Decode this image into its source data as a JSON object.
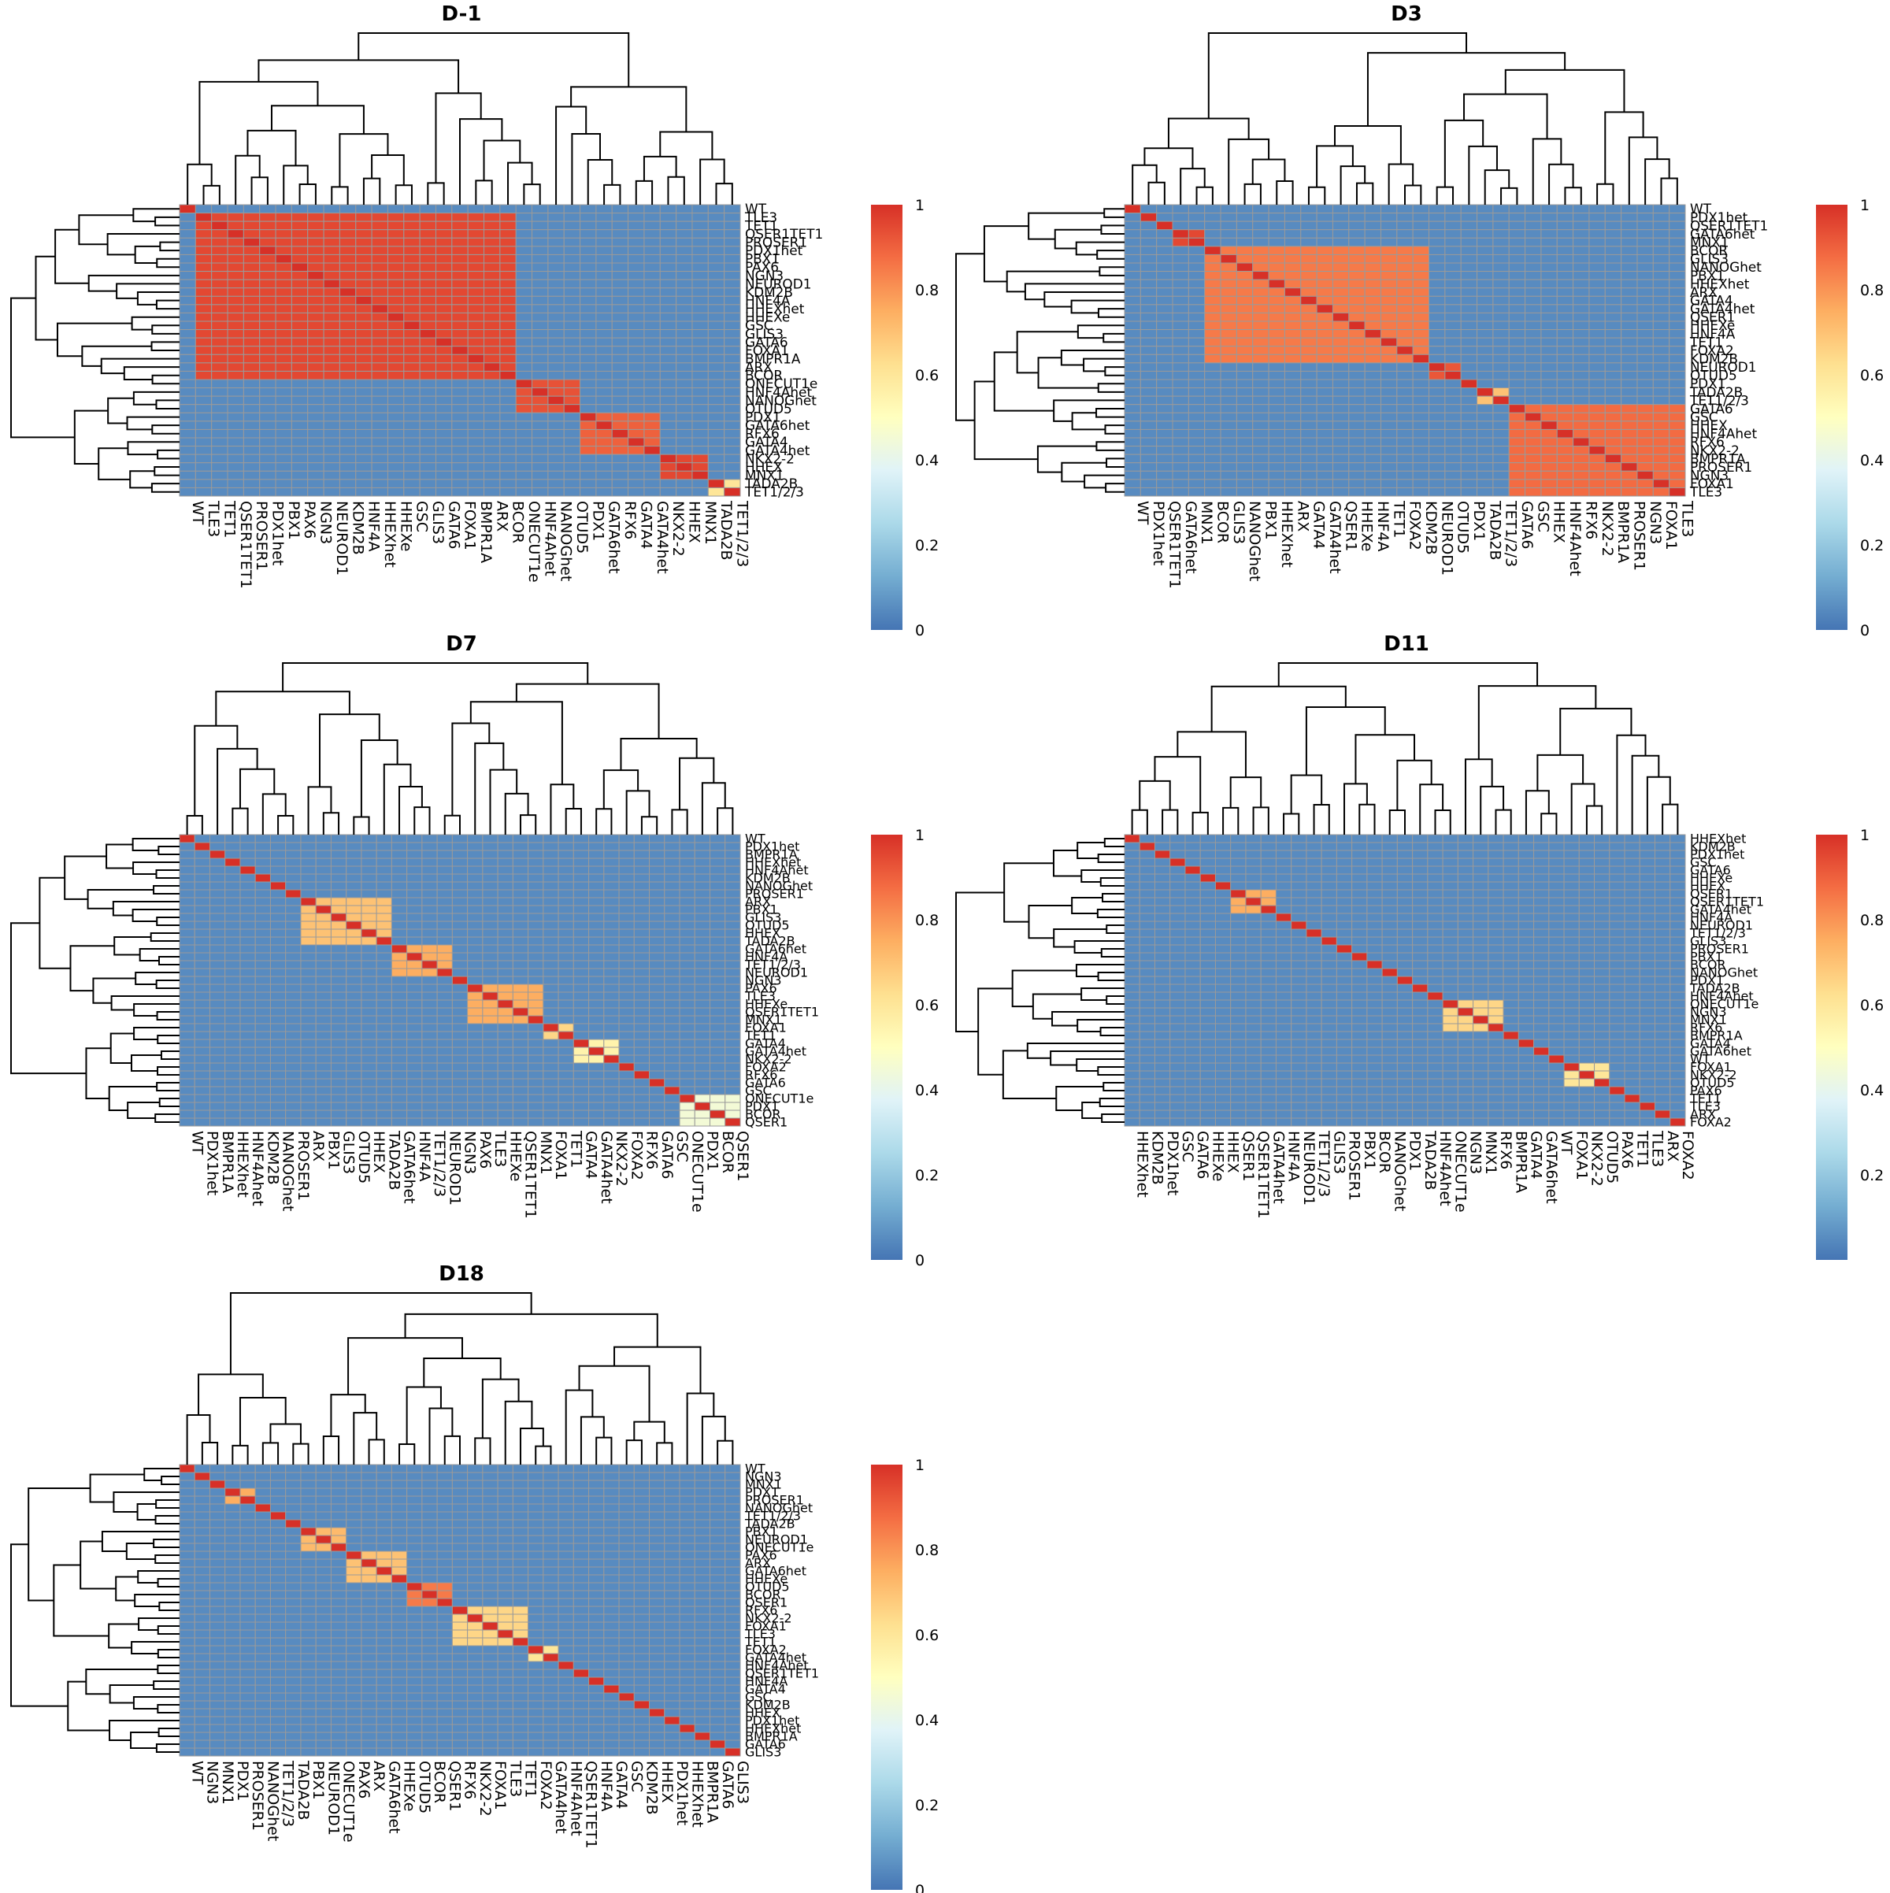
{
  "chart_data": [
    {
      "type": "heatmap",
      "title": "D-1",
      "rows": [
        "WT",
        "TLE3",
        "TET1",
        "QSER1TET1",
        "PROSER1",
        "PDX1het",
        "PBX1",
        "PAX6",
        "NGN3",
        "NEUROD1",
        "KDM2B",
        "HNF4A",
        "HHEXhet",
        "HHEXe",
        "GSC",
        "GLIS3",
        "GATA6",
        "FOXA1",
        "BMPR1A",
        "ARX",
        "BCOR",
        "ONECUT1e",
        "HNF4Ahet",
        "NANOGhet",
        "OTUD5",
        "PDX1",
        "GATA6het",
        "RFX6",
        "GATA4",
        "GATA4het",
        "NKX2-2",
        "HHEX",
        "MNX1",
        "TADA2B",
        "TET1/2/3"
      ],
      "cols": [
        "WT",
        "TLE3",
        "TET1",
        "QSER1TET1",
        "PROSER1",
        "PDX1het",
        "PBX1",
        "PAX6",
        "NGN3",
        "NEUROD1",
        "KDM2B",
        "HNF4A",
        "HHEXhet",
        "HHEXe",
        "GSC",
        "GLIS3",
        "GATA6",
        "FOXA1",
        "BMPR1A",
        "ARX",
        "BCOR",
        "ONECUT1e",
        "HNF4Ahet",
        "NANOGhet",
        "OTUD5",
        "PDX1",
        "GATA6het",
        "RFX6",
        "GATA4",
        "GATA4het",
        "NKX2-2",
        "HHEX",
        "MNX1",
        "TADA2B",
        "TET1/2/3"
      ],
      "blocks": [
        {
          "start": 1,
          "end": 20,
          "value": 0.95
        },
        {
          "start": 21,
          "end": 24,
          "value": 0.93
        },
        {
          "start": 25,
          "end": 29,
          "value": 0.9
        },
        {
          "start": 30,
          "end": 32,
          "value": 0.95
        },
        {
          "start": 33,
          "end": 34,
          "value": 0.6
        }
      ],
      "diagonal": 1.0,
      "background": 0.05,
      "legend": {
        "range": [
          0,
          1
        ],
        "ticks": [
          "1",
          "0.8",
          "0.6",
          "0.4",
          "0.2",
          "0"
        ]
      }
    },
    {
      "type": "heatmap",
      "title": "D3",
      "rows": [
        "WT",
        "PDX1het",
        "QSER1TET1",
        "GATA6het",
        "MNX1",
        "BCOR",
        "GLIS3",
        "NANOGhet",
        "PBX1",
        "HHEXhet",
        "ARX",
        "GATA4",
        "GATA4het",
        "QSER1",
        "HHEXe",
        "HNF4A",
        "TET1",
        "FOXA2",
        "KDM2B",
        "NEUROD1",
        "OTUD5",
        "PDX1",
        "TADA2B",
        "TET1/2/3",
        "GATA6",
        "GSC",
        "HHEX",
        "HNF4Ahet",
        "RFX6",
        "NKX2-2",
        "BMPR1A",
        "PROSER1",
        "NGN3",
        "FOXA1",
        "TLE3"
      ],
      "cols": [
        "WT",
        "PDX1het",
        "QSER1TET1",
        "GATA6het",
        "MNX1",
        "BCOR",
        "GLIS3",
        "NANOGhet",
        "PBX1",
        "HHEXhet",
        "ARX",
        "GATA4",
        "GATA4het",
        "QSER1",
        "HHEXe",
        "HNF4A",
        "TET1",
        "FOXA2",
        "KDM2B",
        "NEUROD1",
        "OTUD5",
        "PDX1",
        "TADA2B",
        "TET1/2/3",
        "GATA6",
        "GSC",
        "HHEX",
        "HNF4Ahet",
        "RFX6",
        "NKX2-2",
        "BMPR1A",
        "PROSER1",
        "NGN3",
        "FOXA1",
        "TLE3"
      ],
      "blocks": [
        {
          "start": 3,
          "end": 4,
          "value": 0.95
        },
        {
          "start": 5,
          "end": 18,
          "value": 0.85
        },
        {
          "start": 19,
          "end": 20,
          "value": 0.92
        },
        {
          "start": 22,
          "end": 23,
          "value": 0.7
        },
        {
          "start": 24,
          "end": 34,
          "value": 0.88
        }
      ],
      "diagonal": 1.0,
      "background": 0.05,
      "legend": {
        "range": [
          0,
          1
        ],
        "ticks": [
          "1",
          "0.8",
          "0.6",
          "0.4",
          "0.2",
          "0"
        ]
      }
    },
    {
      "type": "heatmap",
      "title": "D7",
      "rows": [
        "WT",
        "PDX1het",
        "BMPR1A",
        "HHEXhet",
        "HNF4Ahet",
        "KDM2B",
        "NANOGhet",
        "PROSER1",
        "ARX",
        "PBX1",
        "GLIS3",
        "OTUD5",
        "HHEX",
        "TADA2B",
        "GATA6het",
        "HNF4A",
        "TET1/2/3",
        "NEUROD1",
        "NGN3",
        "PAX6",
        "TLE3",
        "HHEXe",
        "QSER1TET1",
        "MNX1",
        "FOXA1",
        "TET1",
        "GATA4",
        "GATA4het",
        "NKX2-2",
        "FOXA2",
        "RFX6",
        "GATA6",
        "GSC",
        "ONECUT1e",
        "PDX1",
        "BCOR",
        "QSER1"
      ],
      "cols": [
        "WT",
        "PDX1het",
        "BMPR1A",
        "HHEXhet",
        "HNF4Ahet",
        "KDM2B",
        "NANOGhet",
        "PROSER1",
        "ARX",
        "PBX1",
        "GLIS3",
        "OTUD5",
        "HHEX",
        "TADA2B",
        "GATA6het",
        "HNF4A",
        "TET1/2/3",
        "NEUROD1",
        "NGN3",
        "PAX6",
        "TLE3",
        "HHEXe",
        "QSER1TET1",
        "MNX1",
        "FOXA1",
        "TET1",
        "GATA4",
        "GATA4het",
        "NKX2-2",
        "FOXA2",
        "RFX6",
        "GATA6",
        "GSC",
        "ONECUT1e",
        "PDX1",
        "BCOR",
        "QSER1"
      ],
      "blocks": [
        {
          "start": 8,
          "end": 13,
          "value": 0.7
        },
        {
          "start": 14,
          "end": 17,
          "value": 0.75
        },
        {
          "start": 19,
          "end": 23,
          "value": 0.75
        },
        {
          "start": 24,
          "end": 25,
          "value": 0.65
        },
        {
          "start": 26,
          "end": 28,
          "value": 0.55
        },
        {
          "start": 33,
          "end": 36,
          "value": 0.45
        }
      ],
      "diagonal": 1.0,
      "background": 0.05,
      "legend": {
        "range": [
          0,
          1
        ],
        "ticks": [
          "1",
          "0.8",
          "0.6",
          "0.4",
          "0.2",
          "0"
        ]
      }
    },
    {
      "type": "heatmap",
      "title": "D11",
      "rows": [
        "HHEXhet",
        "KDM2B",
        "PDX1het",
        "GSC",
        "GATA6",
        "HHEXe",
        "HHEX",
        "QSER1",
        "QSER1TET1",
        "GATA4het",
        "HNF4A",
        "NEUROD1",
        "TET1/2/3",
        "GLIS3",
        "PROSER1",
        "PBX1",
        "BCOR",
        "NANOGhet",
        "PDX1",
        "TADA2B",
        "HNF4Ahet",
        "ONECUT1e",
        "NGN3",
        "MNX1",
        "RFX6",
        "BMPR1A",
        "GATA4",
        "GATA6het",
        "WT",
        "FOXA1",
        "NKX2-2",
        "OTUD5",
        "PAX6",
        "TET1",
        "TLE3",
        "ARX",
        "FOXA2"
      ],
      "cols": [
        "HHEXhet",
        "KDM2B",
        "PDX1het",
        "GSC",
        "GATA6",
        "HHEXe",
        "HHEX",
        "QSER1",
        "QSER1TET1",
        "GATA4het",
        "HNF4A",
        "NEUROD1",
        "TET1/2/3",
        "GLIS3",
        "PROSER1",
        "PBX1",
        "BCOR",
        "NANOGhet",
        "PDX1",
        "TADA2B",
        "HNF4Ahet",
        "ONECUT1e",
        "NGN3",
        "MNX1",
        "RFX6",
        "BMPR1A",
        "GATA4",
        "GATA6het",
        "WT",
        "FOXA1",
        "NKX2-2",
        "OTUD5",
        "PAX6",
        "TET1",
        "TLE3",
        "ARX",
        "FOXA2"
      ],
      "blocks": [
        {
          "start": 7,
          "end": 9,
          "value": 0.75
        },
        {
          "start": 21,
          "end": 24,
          "value": 0.65
        },
        {
          "start": 29,
          "end": 31,
          "value": 0.6
        }
      ],
      "diagonal": 1.0,
      "background": 0.05,
      "legend": {
        "range": [
          0,
          1
        ],
        "ticks": [
          "1",
          "0.8",
          "0.6",
          "0.4",
          "0.2"
        ]
      }
    },
    {
      "type": "heatmap",
      "title": "D18",
      "rows": [
        "WT",
        "NGN3",
        "MNX1",
        "PDX1",
        "PROSER1",
        "NANOGhet",
        "TET1/2/3",
        "TADA2B",
        "PBX1",
        "NEUROD1",
        "ONECUT1e",
        "PAX6",
        "ARX",
        "GATA6het",
        "HHEXe",
        "OTUD5",
        "BCOR",
        "QSER1",
        "RFX6",
        "NKX2-2",
        "FOXA1",
        "TLE3",
        "TET1",
        "FOXA2",
        "GATA4het",
        "HNF4Ahet",
        "QSER1TET1",
        "HNF4A",
        "GATA4",
        "GSC",
        "KDM2B",
        "HHEX",
        "PDX1het",
        "HHEXhet",
        "BMPR1A",
        "GATA6",
        "GLIS3"
      ],
      "cols": [
        "WT",
        "NGN3",
        "MNX1",
        "PDX1",
        "PROSER1",
        "NANOGhet",
        "TET1/2/3",
        "TADA2B",
        "PBX1",
        "NEUROD1",
        "ONECUT1e",
        "PAX6",
        "ARX",
        "GATA6het",
        "HHEXe",
        "OTUD5",
        "BCOR",
        "QSER1",
        "RFX6",
        "NKX2-2",
        "FOXA1",
        "TLE3",
        "TET1",
        "FOXA2",
        "GATA4het",
        "HNF4Ahet",
        "QSER1TET1",
        "HNF4A",
        "GATA4",
        "GSC",
        "KDM2B",
        "HHEX",
        "PDX1het",
        "HHEXhet",
        "BMPR1A",
        "GATA6",
        "GLIS3"
      ],
      "blocks": [
        {
          "start": 3,
          "end": 4,
          "value": 0.75
        },
        {
          "start": 8,
          "end": 10,
          "value": 0.72
        },
        {
          "start": 11,
          "end": 14,
          "value": 0.7
        },
        {
          "start": 15,
          "end": 17,
          "value": 0.85
        },
        {
          "start": 18,
          "end": 22,
          "value": 0.65
        },
        {
          "start": 23,
          "end": 24,
          "value": 0.6
        }
      ],
      "diagonal": 1.0,
      "background": 0.05,
      "legend": {
        "range": [
          0,
          1
        ],
        "ticks": [
          "1",
          "0.8",
          "0.6",
          "0.4",
          "0.2",
          "0"
        ]
      }
    }
  ],
  "colors": {
    "scale": [
      "#4575b4",
      "#74add1",
      "#abd9e9",
      "#e0f3f8",
      "#ffffbf",
      "#fee090",
      "#fdae61",
      "#f46d43",
      "#d73027"
    ],
    "cell_border": "#9a9a9a",
    "dendrogram": "#000000"
  }
}
